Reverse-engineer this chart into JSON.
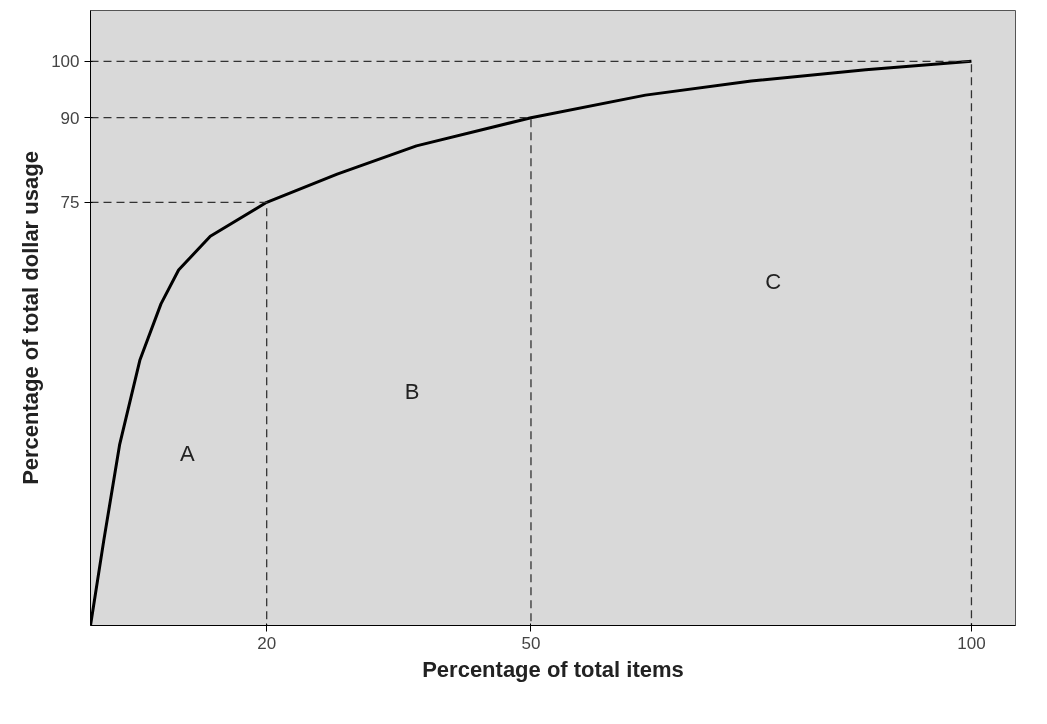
{
  "chart_data": {
    "type": "line",
    "xlabel": "Percentage of total items",
    "ylabel": "Percentage of total dollar usage",
    "xlim": [
      0,
      105
    ],
    "ylim": [
      0,
      109
    ],
    "xticks": [
      20,
      50,
      100
    ],
    "yticks": [
      75,
      90,
      100
    ],
    "series": [
      {
        "color": "#000000",
        "line_style": "solid",
        "x": [
          0,
          1.5,
          3.3,
          5.6,
          8,
          10,
          13.6,
          20,
          28,
          37,
          50,
          63,
          75,
          88,
          100
        ],
        "values": [
          0,
          15,
          32,
          47,
          57,
          63,
          69,
          75,
          80,
          85,
          90,
          94,
          96.5,
          98.5,
          100
        ]
      },
      {
        "color": "#333333",
        "line_style": "dashed",
        "x": [
          0,
          20,
          20
        ],
        "values": [
          75,
          75,
          0
        ]
      },
      {
        "color": "#333333",
        "line_style": "dashed",
        "x": [
          0,
          50,
          50
        ],
        "values": [
          90,
          90,
          0
        ]
      },
      {
        "color": "#333333",
        "line_style": "dashed",
        "x": [
          0,
          100,
          100
        ],
        "values": [
          100,
          100,
          0
        ]
      }
    ],
    "annotations": [
      "A",
      "B",
      "C"
    ]
  }
}
